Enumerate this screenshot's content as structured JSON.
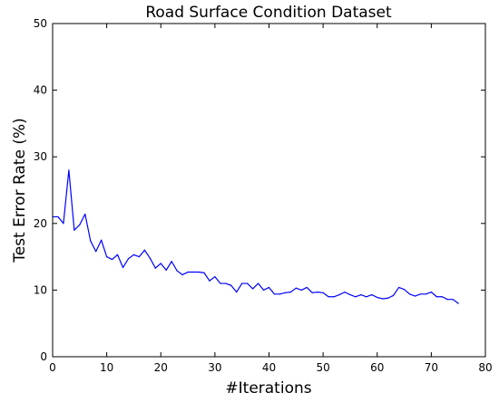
{
  "chart_data": {
    "type": "line",
    "title": "Road Surface Condition Dataset",
    "xlabel": "#Iterations",
    "ylabel": "Test Error Rate (%)",
    "xlim": [
      0,
      80
    ],
    "ylim": [
      0,
      50
    ],
    "xticks": [
      0,
      10,
      20,
      30,
      40,
      50,
      60,
      70,
      80
    ],
    "yticks": [
      0,
      10,
      20,
      30,
      40,
      50
    ],
    "grid": false,
    "series": [
      {
        "color": "#0000ff",
        "x": [
          0,
          1,
          2,
          3,
          4,
          5,
          6,
          7,
          8,
          9,
          10,
          11,
          12,
          13,
          14,
          15,
          16,
          17,
          18,
          19,
          20,
          21,
          22,
          23,
          24,
          25,
          26,
          27,
          28,
          29,
          30,
          31,
          32,
          33,
          34,
          35,
          36,
          37,
          38,
          39,
          40,
          41,
          42,
          43,
          44,
          45,
          46,
          47,
          48,
          49,
          50,
          51,
          52,
          53,
          54,
          55,
          56,
          57,
          58,
          59,
          60,
          61,
          62,
          63,
          64,
          65,
          66,
          67,
          68,
          69,
          70,
          71,
          72,
          73,
          74,
          75
        ],
        "y": [
          21.0,
          21.0,
          20.0,
          28.0,
          19.0,
          19.8,
          21.4,
          17.4,
          15.8,
          17.5,
          15.0,
          14.6,
          15.3,
          13.4,
          14.7,
          15.3,
          15.0,
          16.0,
          14.8,
          13.3,
          14.0,
          13.0,
          14.3,
          12.9,
          12.3,
          12.7,
          12.7,
          12.7,
          12.6,
          11.4,
          12.0,
          11.0,
          11.0,
          10.7,
          9.7,
          11.0,
          11.0,
          10.2,
          11.0,
          10.0,
          10.4,
          9.4,
          9.4,
          9.6,
          9.7,
          10.3,
          10.0,
          10.4,
          9.6,
          9.7,
          9.6,
          9.0,
          9.0,
          9.3,
          9.7,
          9.3,
          9.0,
          9.3,
          9.0,
          9.3,
          8.9,
          8.7,
          8.8,
          9.2,
          10.4,
          10.1,
          9.4,
          9.1,
          9.4,
          9.4,
          9.7,
          9.0,
          9.0,
          8.6,
          8.6,
          8.0
        ]
      }
    ]
  }
}
